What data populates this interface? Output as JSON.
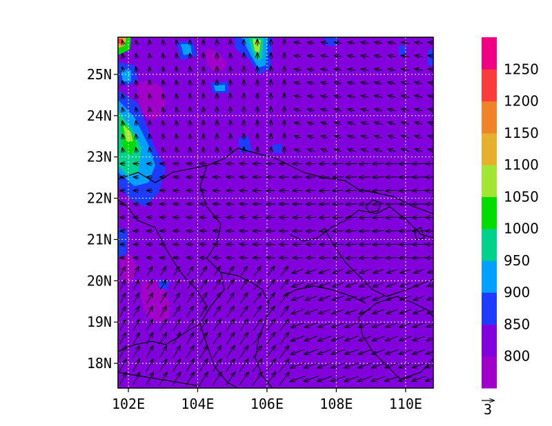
{
  "map": {
    "lon_range": [
      101.7,
      110.8
    ],
    "lat_range": [
      17.4,
      25.9
    ],
    "x_ticks": [
      {
        "value": 102,
        "label": "102E"
      },
      {
        "value": 104,
        "label": "104E"
      },
      {
        "value": 106,
        "label": "106E"
      },
      {
        "value": 108,
        "label": "108E"
      },
      {
        "value": 110,
        "label": "110E"
      }
    ],
    "y_ticks": [
      {
        "value": 18,
        "label": "18N"
      },
      {
        "value": 19,
        "label": "19N"
      },
      {
        "value": 20,
        "label": "20N"
      },
      {
        "value": 21,
        "label": "21N"
      },
      {
        "value": 22,
        "label": "22N"
      },
      {
        "value": 23,
        "label": "23N"
      },
      {
        "value": 24,
        "label": "24N"
      },
      {
        "value": 25,
        "label": "25N"
      }
    ],
    "grid": true,
    "background_color": "#8200dc"
  },
  "colorbar": {
    "bins": [
      {
        "color": "#a000c8",
        "label": "800"
      },
      {
        "color": "#8200dc",
        "label": "850"
      },
      {
        "color": "#1e3cff",
        "label": "900"
      },
      {
        "color": "#00a0ff",
        "label": "950"
      },
      {
        "color": "#00d28c",
        "label": "1000"
      },
      {
        "color": "#00dc00",
        "label": "1050"
      },
      {
        "color": "#a0e632",
        "label": "1100"
      },
      {
        "color": "#e6af2d",
        "label": "1150"
      },
      {
        "color": "#f08228",
        "label": "1200"
      },
      {
        "color": "#fa3c3c",
        "label": "1250"
      },
      {
        "color": "#f00082",
        "label": ""
      }
    ]
  },
  "vector_legend": {
    "label": "3"
  }
}
